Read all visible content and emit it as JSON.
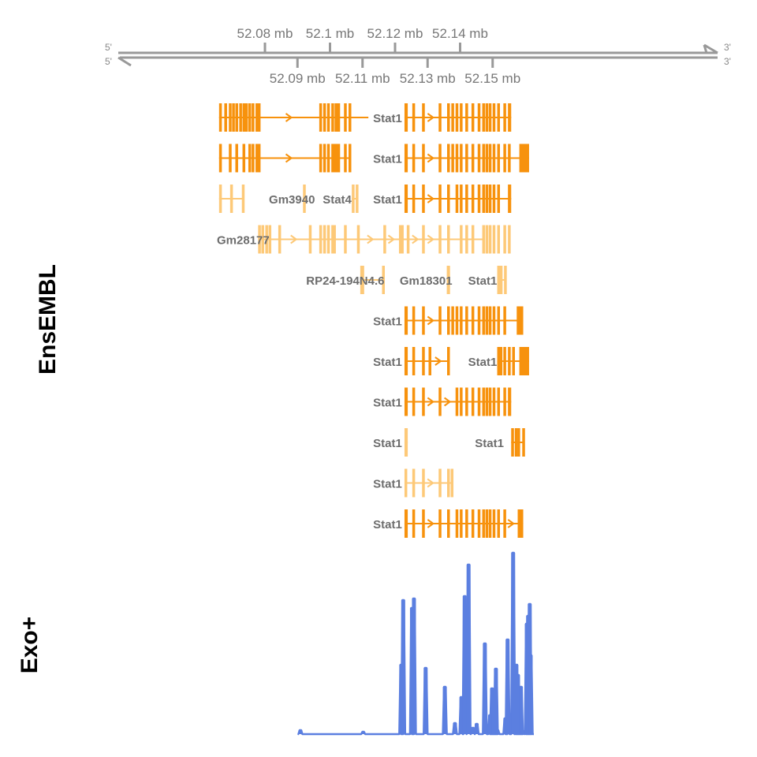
{
  "axis": {
    "unit": "mb",
    "strand_labels": {
      "left_top": "5'",
      "left_bottom": "5'",
      "right_top": "3'",
      "right_bottom": "3'"
    },
    "top_ticks": [
      {
        "value": 52.08,
        "label": "52.08 mb"
      },
      {
        "value": 52.1,
        "label": "52.1 mb"
      },
      {
        "value": 52.12,
        "label": "52.12 mb"
      },
      {
        "value": 52.14,
        "label": "52.14 mb"
      }
    ],
    "bottom_ticks": [
      {
        "value": 52.09,
        "label": "52.09 mb"
      },
      {
        "value": 52.11,
        "label": "52.11 mb"
      },
      {
        "value": 52.13,
        "label": "52.13 mb"
      },
      {
        "value": 52.15,
        "label": "52.15 mb"
      }
    ]
  },
  "tracks": {
    "ensembl": {
      "label": "EnsEMBL"
    },
    "exo": {
      "label": "Exo+"
    }
  },
  "colors": {
    "dark": "#F7920D",
    "light": "#FDC978",
    "axis": "#999999",
    "signal": "#5B7FE0"
  },
  "gene_labels": [
    {
      "text": "Stat1",
      "lane": 0,
      "pos": 52.1177
    },
    {
      "text": "Stat1",
      "lane": 1,
      "pos": 52.1177
    },
    {
      "text": "Gm3940",
      "lane": 2,
      "pos": 52.0883
    },
    {
      "text": "Stat4",
      "lane": 2,
      "pos": 52.1022
    },
    {
      "text": "Stat1",
      "lane": 2,
      "pos": 52.1177
    },
    {
      "text": "Gm28177",
      "lane": 3,
      "pos": 52.0733
    },
    {
      "text": "RP24-194N4.6",
      "lane": 4,
      "pos": 52.1047
    },
    {
      "text": "Gm18301",
      "lane": 4,
      "pos": 52.1295
    },
    {
      "text": "Stat1",
      "lane": 4,
      "pos": 52.1469
    },
    {
      "text": "Stat1",
      "lane": 5,
      "pos": 52.1177
    },
    {
      "text": "Stat1",
      "lane": 6,
      "pos": 52.1177
    },
    {
      "text": "Stat1",
      "lane": 6,
      "pos": 52.1469
    },
    {
      "text": "Stat1",
      "lane": 7,
      "pos": 52.1177
    },
    {
      "text": "Stat1",
      "lane": 8,
      "pos": 52.1177
    },
    {
      "text": "Stat1",
      "lane": 8,
      "pos": 52.149
    },
    {
      "text": "Stat1",
      "lane": 9,
      "pos": 52.1177
    },
    {
      "text": "Stat1",
      "lane": 10,
      "pos": 52.1177
    }
  ],
  "transcripts": [
    {
      "lane": 0,
      "color": "dark",
      "start": 52.0659,
      "end": 52.1118,
      "strand": "+",
      "exons": [
        [
          52.0659,
          52.0661
        ],
        [
          52.0675,
          52.0677
        ],
        [
          52.0689,
          52.0691
        ],
        [
          52.0699,
          52.0701
        ],
        [
          52.0709,
          52.0711
        ],
        [
          52.0721,
          52.0723
        ],
        [
          52.0731,
          52.0733
        ],
        [
          52.0739,
          52.0741
        ],
        [
          52.0749,
          52.0751
        ],
        [
          52.0759,
          52.0761
        ],
        [
          52.0771,
          52.0775
        ],
        [
          52.0778,
          52.0781
        ],
        [
          52.0967,
          52.097
        ],
        [
          52.0979,
          52.0982
        ],
        [
          52.0991,
          52.0994
        ],
        [
          52.1004,
          52.1007
        ],
        [
          52.1014,
          52.1031
        ],
        [
          52.1043,
          52.1047
        ],
        [
          52.1057,
          52.1061
        ]
      ]
    },
    {
      "lane": 0,
      "color": "dark",
      "start": 52.1229,
      "end": 52.1557,
      "strand": "+",
      "exons": [
        [
          52.1229,
          52.1239
        ],
        [
          52.1253,
          52.1259
        ],
        [
          52.1283,
          52.1286
        ],
        [
          52.1334,
          52.1337
        ],
        [
          52.136,
          52.1363
        ],
        [
          52.1373,
          52.1377
        ],
        [
          52.1386,
          52.139
        ],
        [
          52.1399,
          52.1404
        ],
        [
          52.1416,
          52.142
        ],
        [
          52.1435,
          52.1438
        ],
        [
          52.1454,
          52.1457
        ],
        [
          52.1468,
          52.1473
        ],
        [
          52.1478,
          52.1482
        ],
        [
          52.1488,
          52.1492
        ],
        [
          52.15,
          52.1504
        ],
        [
          52.1514,
          52.1518
        ],
        [
          52.1533,
          52.1537
        ],
        [
          52.1547,
          52.1557
        ]
      ]
    },
    {
      "lane": 1,
      "color": "dark",
      "start": 52.0659,
      "end": 52.1061,
      "strand": "+",
      "exons": [
        [
          52.0659,
          52.0661
        ],
        [
          52.0689,
          52.0691
        ],
        [
          52.0709,
          52.0711
        ],
        [
          52.0731,
          52.0733
        ],
        [
          52.0749,
          52.0751
        ],
        [
          52.0759,
          52.0761
        ],
        [
          52.0771,
          52.0775
        ],
        [
          52.0778,
          52.0781
        ],
        [
          52.0967,
          52.097
        ],
        [
          52.0979,
          52.0982
        ],
        [
          52.0991,
          52.0994
        ],
        [
          52.1004,
          52.1031
        ],
        [
          52.1043,
          52.1047
        ],
        [
          52.1057,
          52.1061
        ]
      ]
    },
    {
      "lane": 1,
      "color": "dark",
      "start": 52.1229,
      "end": 52.1612,
      "strand": "+",
      "exons": [
        [
          52.1229,
          52.1239
        ],
        [
          52.1253,
          52.1259
        ],
        [
          52.1283,
          52.1286
        ],
        [
          52.1334,
          52.1337
        ],
        [
          52.136,
          52.1363
        ],
        [
          52.1373,
          52.1377
        ],
        [
          52.1386,
          52.139
        ],
        [
          52.1399,
          52.1404
        ],
        [
          52.1416,
          52.142
        ],
        [
          52.1435,
          52.1438
        ],
        [
          52.1454,
          52.1457
        ],
        [
          52.1468,
          52.1473
        ],
        [
          52.1478,
          52.1482
        ],
        [
          52.1488,
          52.1492
        ],
        [
          52.15,
          52.1504
        ],
        [
          52.1514,
          52.1518
        ],
        [
          52.1533,
          52.1537
        ],
        [
          52.1547,
          52.155
        ],
        [
          52.1582,
          52.1612
        ]
      ]
    },
    {
      "lane": 2,
      "color": "light",
      "start": 52.0659,
      "end": 52.0736,
      "strand": "+",
      "exons": [
        [
          52.0659,
          52.0661
        ],
        [
          52.0693,
          52.0695
        ],
        [
          52.0729,
          52.0736
        ]
      ]
    },
    {
      "lane": 2,
      "color": "light",
      "start": 52.0917,
      "end": 52.0921,
      "strand": "+",
      "exons": [
        [
          52.0917,
          52.0921
        ]
      ]
    },
    {
      "lane": 2,
      "color": "light",
      "start": 52.1067,
      "end": 52.1081,
      "strand": "+",
      "exons": [
        [
          52.1067,
          52.1069
        ],
        [
          52.1079,
          52.1081
        ]
      ]
    },
    {
      "lane": 2,
      "color": "dark",
      "start": 52.1229,
      "end": 52.1557,
      "strand": "+",
      "exons": [
        [
          52.1229,
          52.1239
        ],
        [
          52.1253,
          52.1259
        ],
        [
          52.1283,
          52.1286
        ],
        [
          52.1334,
          52.1337
        ],
        [
          52.136,
          52.1363
        ],
        [
          52.1386,
          52.139
        ],
        [
          52.1399,
          52.1404
        ],
        [
          52.1416,
          52.142
        ],
        [
          52.1435,
          52.1438
        ],
        [
          52.1454,
          52.1457
        ],
        [
          52.1468,
          52.1473
        ],
        [
          52.1478,
          52.1482
        ],
        [
          52.1488,
          52.1492
        ],
        [
          52.15,
          52.1504
        ],
        [
          52.1514,
          52.1518
        ],
        [
          52.1547,
          52.1557
        ]
      ]
    },
    {
      "lane": 3,
      "color": "light",
      "start": 52.0779,
      "end": 52.1474,
      "strand": "+",
      "exons": [
        [
          52.0779,
          52.0781
        ],
        [
          52.0789,
          52.0791
        ],
        [
          52.0801,
          52.0803
        ],
        [
          52.0811,
          52.0818
        ],
        [
          52.0841,
          52.0843
        ],
        [
          52.0935,
          52.0937
        ],
        [
          52.0967,
          52.097
        ],
        [
          52.0979,
          52.0982
        ],
        [
          52.0991,
          52.0994
        ],
        [
          52.1004,
          52.1018
        ],
        [
          52.1043,
          52.1045
        ],
        [
          52.1083,
          52.1085
        ],
        [
          52.1164,
          52.1166
        ],
        [
          52.1212,
          52.1214
        ],
        [
          52.1218,
          52.122
        ],
        [
          52.1236,
          52.1242
        ],
        [
          52.1283,
          52.1286
        ],
        [
          52.1334,
          52.1337
        ],
        [
          52.136,
          52.1363
        ],
        [
          52.1399,
          52.1402
        ],
        [
          52.1416,
          52.142
        ],
        [
          52.1435,
          52.1438
        ],
        [
          52.1468,
          52.1471
        ],
        [
          52.1478,
          52.148
        ],
        [
          52.1488,
          52.1492
        ],
        [
          52.15,
          52.1504
        ],
        [
          52.1514,
          52.1518
        ],
        [
          52.1533,
          52.1535
        ],
        [
          52.1547,
          52.155
        ]
      ]
    },
    {
      "lane": 4,
      "color": "light",
      "start": 52.1093,
      "end": 52.1162,
      "strand": "none",
      "exons": [
        [
          52.1093,
          52.1105
        ],
        [
          52.116,
          52.1162
        ]
      ]
    },
    {
      "lane": 4,
      "color": "light",
      "start": 52.1359,
      "end": 52.1369,
      "strand": "none",
      "exons": [
        [
          52.1359,
          52.1369
        ]
      ]
    },
    {
      "lane": 4,
      "color": "light",
      "start": 52.1514,
      "end": 52.1537,
      "strand": "none",
      "exons": [
        [
          52.1514,
          52.1516
        ],
        [
          52.1522,
          52.1524
        ],
        [
          52.1535,
          52.1537
        ]
      ]
    },
    {
      "lane": 5,
      "color": "dark",
      "start": 52.1229,
      "end": 52.1594,
      "strand": "+",
      "exons": [
        [
          52.1229,
          52.1239
        ],
        [
          52.1253,
          52.1259
        ],
        [
          52.1283,
          52.1286
        ],
        [
          52.1334,
          52.1337
        ],
        [
          52.136,
          52.1363
        ],
        [
          52.1373,
          52.1377
        ],
        [
          52.1386,
          52.139
        ],
        [
          52.1399,
          52.1404
        ],
        [
          52.1416,
          52.142
        ],
        [
          52.1435,
          52.1438
        ],
        [
          52.1454,
          52.1457
        ],
        [
          52.1468,
          52.1473
        ],
        [
          52.1478,
          52.1482
        ],
        [
          52.1488,
          52.1492
        ],
        [
          52.15,
          52.1504
        ],
        [
          52.1514,
          52.1518
        ],
        [
          52.1533,
          52.1537
        ],
        [
          52.1574,
          52.1594
        ]
      ]
    },
    {
      "lane": 6,
      "color": "dark",
      "start": 52.1229,
      "end": 52.1364,
      "strand": "+",
      "exons": [
        [
          52.1229,
          52.1239
        ],
        [
          52.1253,
          52.1259
        ],
        [
          52.1283,
          52.1286
        ],
        [
          52.1303,
          52.1306
        ],
        [
          52.136,
          52.1363
        ]
      ]
    },
    {
      "lane": 6,
      "color": "dark",
      "start": 52.1514,
      "end": 52.1612,
      "strand": "+",
      "exons": [
        [
          52.1514,
          52.153
        ],
        [
          52.1533,
          52.1537
        ],
        [
          52.1547,
          52.155
        ],
        [
          52.156,
          52.1563
        ],
        [
          52.1582,
          52.1612
        ]
      ]
    },
    {
      "lane": 7,
      "color": "dark",
      "start": 52.1229,
      "end": 52.1557,
      "strand": "+",
      "exons": [
        [
          52.1229,
          52.1239
        ],
        [
          52.1253,
          52.1259
        ],
        [
          52.1283,
          52.1286
        ],
        [
          52.1334,
          52.1337
        ],
        [
          52.1386,
          52.139
        ],
        [
          52.1399,
          52.1404
        ],
        [
          52.1416,
          52.142
        ],
        [
          52.1435,
          52.1438
        ],
        [
          52.1454,
          52.1457
        ],
        [
          52.1468,
          52.1473
        ],
        [
          52.1478,
          52.1482
        ],
        [
          52.1488,
          52.1492
        ],
        [
          52.15,
          52.1504
        ],
        [
          52.1514,
          52.1518
        ],
        [
          52.1533,
          52.1537
        ],
        [
          52.1547,
          52.1557
        ]
      ]
    },
    {
      "lane": 8,
      "color": "light",
      "start": 52.1229,
      "end": 52.1239,
      "strand": "none",
      "exons": [
        [
          52.1229,
          52.1239
        ]
      ]
    },
    {
      "lane": 8,
      "color": "dark",
      "start": 52.1557,
      "end": 52.1594,
      "strand": "+",
      "exons": [
        [
          52.1557,
          52.1559
        ],
        [
          52.1568,
          52.1573
        ],
        [
          52.1576,
          52.1579
        ],
        [
          52.1591,
          52.1594
        ]
      ]
    },
    {
      "lane": 9,
      "color": "light",
      "start": 52.1229,
      "end": 52.1378,
      "strand": "+",
      "exons": [
        [
          52.1229,
          52.1231
        ],
        [
          52.1253,
          52.1255
        ],
        [
          52.1283,
          52.1285
        ],
        [
          52.1334,
          52.1336
        ],
        [
          52.136,
          52.1362
        ],
        [
          52.1371,
          52.1378
        ]
      ]
    },
    {
      "lane": 10,
      "color": "dark",
      "start": 52.1229,
      "end": 52.1594,
      "strand": "+",
      "exons": [
        [
          52.1229,
          52.1239
        ],
        [
          52.1253,
          52.1259
        ],
        [
          52.1283,
          52.1286
        ],
        [
          52.1334,
          52.1337
        ],
        [
          52.136,
          52.1363
        ],
        [
          52.1386,
          52.139
        ],
        [
          52.1399,
          52.1404
        ],
        [
          52.1416,
          52.142
        ],
        [
          52.1435,
          52.1438
        ],
        [
          52.1454,
          52.1457
        ],
        [
          52.1468,
          52.1473
        ],
        [
          52.1478,
          52.1482
        ],
        [
          52.1488,
          52.1492
        ],
        [
          52.15,
          52.1504
        ],
        [
          52.1514,
          52.1518
        ],
        [
          52.1533,
          52.1537
        ],
        [
          52.1577,
          52.1594
        ]
      ]
    }
  ],
  "exo_signal": {
    "peaks": [
      {
        "pos": 52.0909,
        "height": 5
      },
      {
        "pos": 52.1102,
        "height": 3
      },
      {
        "pos": 52.1219,
        "height": 88
      },
      {
        "pos": 52.1225,
        "height": 170
      },
      {
        "pos": 52.1252,
        "height": 160
      },
      {
        "pos": 52.1258,
        "height": 172
      },
      {
        "pos": 52.1294,
        "height": 84
      },
      {
        "pos": 52.1353,
        "height": 60
      },
      {
        "pos": 52.1384,
        "height": 14
      },
      {
        "pos": 52.1404,
        "height": 47
      },
      {
        "pos": 52.1414,
        "height": 175
      },
      {
        "pos": 52.1426,
        "height": 215
      },
      {
        "pos": 52.1439,
        "height": 8
      },
      {
        "pos": 52.1451,
        "height": 13
      },
      {
        "pos": 52.1476,
        "height": 115
      },
      {
        "pos": 52.1492,
        "height": 24
      },
      {
        "pos": 52.1498,
        "height": 58
      },
      {
        "pos": 52.1504,
        "height": 44
      },
      {
        "pos": 52.151,
        "height": 83
      },
      {
        "pos": 52.1515,
        "height": 5
      },
      {
        "pos": 52.1539,
        "height": 20
      },
      {
        "pos": 52.1546,
        "height": 120
      },
      {
        "pos": 52.1563,
        "height": 230
      },
      {
        "pos": 52.1573,
        "height": 88
      },
      {
        "pos": 52.1578,
        "height": 75
      },
      {
        "pos": 52.1587,
        "height": 60
      },
      {
        "pos": 52.1592,
        "height": 4
      },
      {
        "pos": 52.1605,
        "height": 140
      },
      {
        "pos": 52.1609,
        "height": 150
      },
      {
        "pos": 52.1614,
        "height": 165
      },
      {
        "pos": 52.1617,
        "height": 100
      }
    ]
  }
}
